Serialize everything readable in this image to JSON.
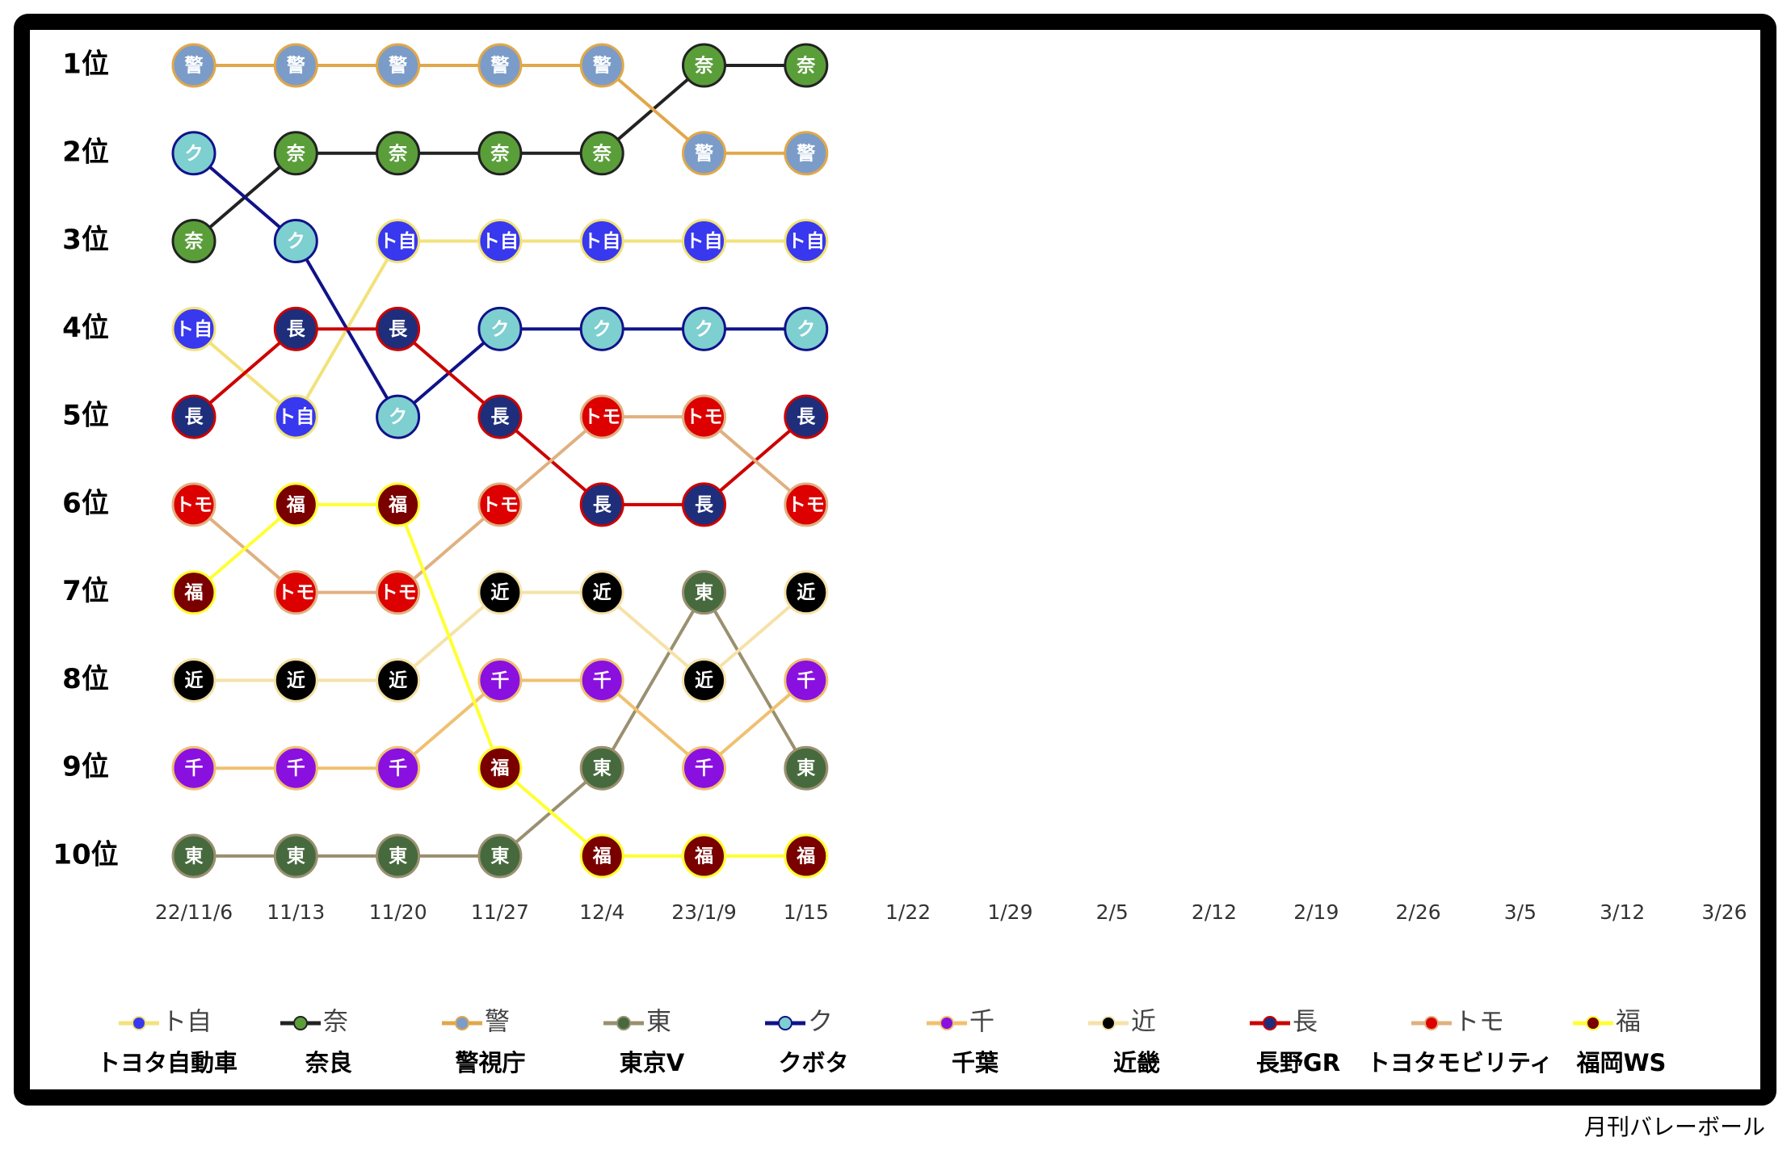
{
  "chart_data": {
    "type": "line",
    "categories": [
      "22/11/6",
      "11/13",
      "11/20",
      "11/27",
      "12/4",
      "23/1/9",
      "1/15",
      "1/22",
      "1/29",
      "2/5",
      "2/12",
      "2/19",
      "2/26",
      "3/5",
      "3/12",
      "3/26"
    ],
    "ylim": [
      10,
      1
    ],
    "yticks": [
      {
        "value": 1,
        "label": "1位"
      },
      {
        "value": 2,
        "label": "2位"
      },
      {
        "value": 3,
        "label": "3位"
      },
      {
        "value": 4,
        "label": "4位"
      },
      {
        "value": 5,
        "label": "5位"
      },
      {
        "value": 6,
        "label": "6位"
      },
      {
        "value": 7,
        "label": "7位"
      },
      {
        "value": 8,
        "label": "8位"
      },
      {
        "value": 9,
        "label": "9位"
      },
      {
        "value": 10,
        "label": "10位"
      }
    ],
    "series": [
      {
        "name": "トヨタ自動車",
        "short": "ト自",
        "color": "#f2e27a",
        "marker_color": "#3838ee",
        "values": [
          4,
          5,
          3,
          3,
          3,
          3,
          3,
          null,
          null,
          null,
          null,
          null,
          null,
          null,
          null,
          null
        ]
      },
      {
        "name": "奈良",
        "short": "奈",
        "color": "#222222",
        "marker_color": "#5a9e3a",
        "values": [
          3,
          2,
          2,
          2,
          2,
          1,
          1,
          null,
          null,
          null,
          null,
          null,
          null,
          null,
          null,
          null
        ]
      },
      {
        "name": "警視庁",
        "short": "警",
        "color": "#e0a84a",
        "marker_color": "#7b9cc8",
        "values": [
          1,
          1,
          1,
          1,
          1,
          2,
          2,
          null,
          null,
          null,
          null,
          null,
          null,
          null,
          null,
          null
        ]
      },
      {
        "name": "東京V",
        "short": "東",
        "color": "#9a9070",
        "marker_color": "#466a3e",
        "values": [
          10,
          10,
          10,
          10,
          9,
          7,
          9,
          null,
          null,
          null,
          null,
          null,
          null,
          null,
          null,
          null
        ]
      },
      {
        "name": "クボタ",
        "short": "ク",
        "color": "#10128a",
        "marker_color": "#7ecfcf",
        "values": [
          2,
          3,
          5,
          4,
          4,
          4,
          4,
          null,
          null,
          null,
          null,
          null,
          null,
          null,
          null,
          null
        ]
      },
      {
        "name": "千葉",
        "short": "千",
        "color": "#f0c070",
        "marker_color": "#8a10e0",
        "values": [
          9,
          9,
          9,
          8,
          8,
          9,
          8,
          null,
          null,
          null,
          null,
          null,
          null,
          null,
          null,
          null
        ]
      },
      {
        "name": "近畿",
        "short": "近",
        "color": "#f5e2a8",
        "marker_color": "#000000",
        "values": [
          8,
          8,
          8,
          7,
          7,
          8,
          7,
          null,
          null,
          null,
          null,
          null,
          null,
          null,
          null,
          null
        ]
      },
      {
        "name": "長野GR",
        "short": "長",
        "color": "#cc0000",
        "marker_color": "#1e2e7a",
        "values": [
          5,
          4,
          4,
          5,
          6,
          6,
          5,
          null,
          null,
          null,
          null,
          null,
          null,
          null,
          null,
          null
        ]
      },
      {
        "name": "トヨタモビリティ",
        "short": "トモ",
        "color": "#e0b080",
        "marker_color": "#dd0000",
        "values": [
          6,
          7,
          7,
          6,
          5,
          5,
          6,
          null,
          null,
          null,
          null,
          null,
          null,
          null,
          null,
          null
        ]
      },
      {
        "name": "福岡WS",
        "short": "福",
        "color": "#ffff33",
        "marker_color": "#7a0000",
        "values": [
          7,
          6,
          6,
          9,
          10,
          10,
          10,
          null,
          null,
          null,
          null,
          null,
          null,
          null,
          null,
          null
        ]
      }
    ],
    "source": "月刊バレーボール"
  }
}
